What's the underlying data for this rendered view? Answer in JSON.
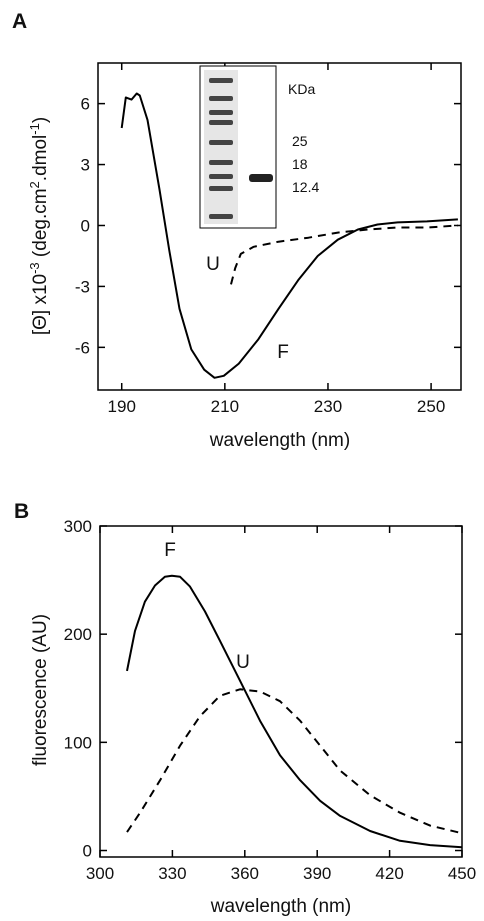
{
  "chart_data": [
    {
      "type": "line",
      "panel": "A",
      "ylabel": [
        "[Θ] x10",
        "-3",
        " (deg.cm",
        "2",
        ".dmol",
        "-1",
        ")"
      ],
      "xlabel": "wavelength (nm)",
      "xlim": [
        185.4,
        255.8
      ],
      "xticks": [
        190,
        210,
        230,
        250
      ],
      "ylim": [
        -8.1,
        8.0
      ],
      "yticks": [
        -6,
        -3,
        0,
        3,
        6
      ],
      "inset_labels": [
        "KDa",
        "25",
        "18",
        "12.4"
      ],
      "series": [
        {
          "name": "F",
          "color": "#000",
          "dash": false,
          "x": [
            190,
            190.8,
            191.9,
            192.9,
            193.5,
            195,
            197.3,
            199.2,
            201.2,
            203.5,
            206,
            208,
            209.8,
            212.7,
            216.5,
            220.4,
            224.2,
            228,
            231.9,
            235.8,
            239.6,
            243.5,
            249.2,
            255.2
          ],
          "values": [
            4.8,
            6.3,
            6.2,
            6.5,
            6.4,
            5.2,
            1.8,
            -1.2,
            -4.1,
            -6.1,
            -7.1,
            -7.5,
            -7.4,
            -6.8,
            -5.6,
            -4.1,
            -2.7,
            -1.5,
            -0.7,
            -0.2,
            0.05,
            0.15,
            0.2,
            0.3
          ]
        },
        {
          "name": "U",
          "color": "#000",
          "dash": true,
          "x": [
            211.2,
            212,
            213.1,
            215.6,
            220.4,
            226.2,
            231.9,
            237.7,
            243.5,
            249.2,
            255.2
          ],
          "values": [
            -2.9,
            -2.1,
            -1.4,
            -1.05,
            -0.8,
            -0.6,
            -0.35,
            -0.2,
            -0.1,
            -0.1,
            0
          ]
        }
      ]
    },
    {
      "type": "line",
      "panel": "B",
      "ylabel": [
        "fluorescence (AU)"
      ],
      "xlabel": "wavelength (nm)",
      "xlim": [
        300,
        450
      ],
      "xticks": [
        300,
        330,
        360,
        390,
        420,
        450
      ],
      "ylim": [
        -6,
        300
      ],
      "yticks": [
        0,
        100,
        200,
        300
      ],
      "series": [
        {
          "name": "F",
          "color": "#000",
          "dash": false,
          "x": [
            311.2,
            314.5,
            318.6,
            322.8,
            326.9,
            329.8,
            333.2,
            337.3,
            343.5,
            349.7,
            358,
            366.3,
            374.6,
            382.9,
            391.2,
            399.5,
            411.9,
            424.3,
            436.8,
            450
          ],
          "values": [
            166,
            203,
            230,
            245,
            253,
            254,
            253,
            244,
            221,
            194,
            157,
            120,
            88,
            65,
            46,
            32,
            18,
            9,
            5,
            3
          ]
        },
        {
          "name": "U",
          "color": "#000",
          "dash": true,
          "x": [
            311.2,
            316.6,
            324.9,
            333.2,
            341.4,
            349.7,
            358,
            366.3,
            374.6,
            382.9,
            391.2,
            399.5,
            411.9,
            424.3,
            436.8,
            450
          ],
          "values": [
            17,
            35,
            65,
            97,
            124,
            143,
            149,
            147,
            138,
            120,
            97,
            74,
            51,
            35,
            23,
            16
          ]
        }
      ]
    }
  ]
}
